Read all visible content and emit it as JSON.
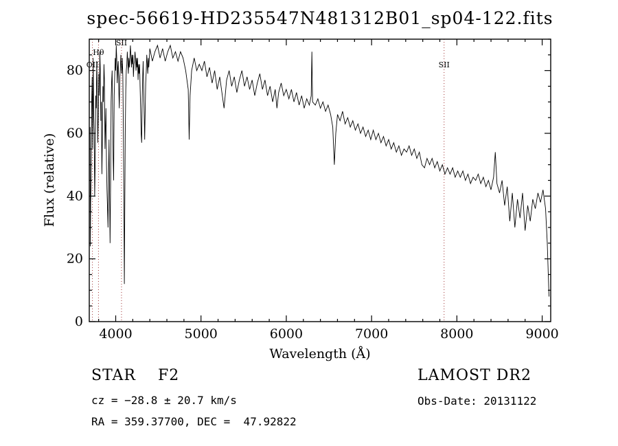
{
  "chart_data": {
    "type": "line",
    "title": "spec-56619-HD235547N481312B01_sp04-122.fits",
    "xlabel": "Wavelength (Å)",
    "ylabel": "Flux (relative)",
    "xlim": [
      3690,
      9100
    ],
    "ylim": [
      0,
      90
    ],
    "x_ticks": [
      4000,
      5000,
      6000,
      7000,
      8000,
      9000
    ],
    "y_ticks": [
      0,
      20,
      40,
      60,
      80
    ],
    "x_minor_step": 200,
    "y_minor_step": 5,
    "grid": false,
    "line_color": "#000000",
    "marker_line_color": "#a03232",
    "spectral_lines": [
      {
        "label": "Hθ",
        "wavelength": 3798,
        "label_flux": 85
      },
      {
        "label": "OII",
        "wavelength": 3727,
        "label_flux": 81
      },
      {
        "label": "SII",
        "wavelength": 4068,
        "label_flux": 88
      },
      {
        "label": "SII",
        "wavelength": 7850,
        "label_flux": 81
      }
    ],
    "points": [
      [
        3700,
        62
      ],
      [
        3703,
        24
      ],
      [
        3706,
        38
      ],
      [
        3712,
        45
      ],
      [
        3718,
        70
      ],
      [
        3724,
        78
      ],
      [
        3730,
        55
      ],
      [
        3736,
        84
      ],
      [
        3742,
        66
      ],
      [
        3748,
        60
      ],
      [
        3754,
        40
      ],
      [
        3760,
        52
      ],
      [
        3766,
        72
      ],
      [
        3772,
        68
      ],
      [
        3778,
        83
      ],
      [
        3784,
        74
      ],
      [
        3790,
        57
      ],
      [
        3796,
        65
      ],
      [
        3802,
        79
      ],
      [
        3808,
        72
      ],
      [
        3814,
        86
      ],
      [
        3820,
        80
      ],
      [
        3826,
        64
      ],
      [
        3832,
        70
      ],
      [
        3838,
        47
      ],
      [
        3844,
        58
      ],
      [
        3850,
        75
      ],
      [
        3856,
        70
      ],
      [
        3862,
        82
      ],
      [
        3868,
        77
      ],
      [
        3874,
        55
      ],
      [
        3880,
        62
      ],
      [
        3886,
        68
      ],
      [
        3892,
        50
      ],
      [
        3898,
        42
      ],
      [
        3904,
        36
      ],
      [
        3910,
        30
      ],
      [
        3916,
        48
      ],
      [
        3922,
        58
      ],
      [
        3928,
        40
      ],
      [
        3934,
        25
      ],
      [
        3940,
        45
      ],
      [
        3946,
        70
      ],
      [
        3952,
        76
      ],
      [
        3958,
        80
      ],
      [
        3964,
        68
      ],
      [
        3970,
        52
      ],
      [
        3976,
        45
      ],
      [
        3982,
        72
      ],
      [
        3988,
        78
      ],
      [
        3994,
        84
      ],
      [
        4000,
        80
      ],
      [
        4006,
        88
      ],
      [
        4012,
        84
      ],
      [
        4018,
        76
      ],
      [
        4024,
        81
      ],
      [
        4030,
        83
      ],
      [
        4036,
        74
      ],
      [
        4042,
        68
      ],
      [
        4048,
        78
      ],
      [
        4054,
        80
      ],
      [
        4060,
        85
      ],
      [
        4066,
        82
      ],
      [
        4072,
        79
      ],
      [
        4078,
        84
      ],
      [
        4084,
        78
      ],
      [
        4090,
        60
      ],
      [
        4096,
        40
      ],
      [
        4101,
        12
      ],
      [
        4106,
        35
      ],
      [
        4112,
        60
      ],
      [
        4118,
        74
      ],
      [
        4124,
        80
      ],
      [
        4130,
        82
      ],
      [
        4136,
        86
      ],
      [
        4142,
        83
      ],
      [
        4148,
        79
      ],
      [
        4154,
        84
      ],
      [
        4160,
        81
      ],
      [
        4166,
        84
      ],
      [
        4172,
        88
      ],
      [
        4178,
        85
      ],
      [
        4184,
        81
      ],
      [
        4190,
        85
      ],
      [
        4196,
        82
      ],
      [
        4202,
        85
      ],
      [
        4208,
        78
      ],
      [
        4214,
        82
      ],
      [
        4220,
        83
      ],
      [
        4226,
        86
      ],
      [
        4232,
        84
      ],
      [
        4238,
        80
      ],
      [
        4244,
        84
      ],
      [
        4250,
        81
      ],
      [
        4256,
        84
      ],
      [
        4262,
        77
      ],
      [
        4268,
        82
      ],
      [
        4274,
        79
      ],
      [
        4280,
        82
      ],
      [
        4286,
        75
      ],
      [
        4292,
        68
      ],
      [
        4298,
        60
      ],
      [
        4304,
        57
      ],
      [
        4310,
        70
      ],
      [
        4316,
        78
      ],
      [
        4322,
        83
      ],
      [
        4328,
        74
      ],
      [
        4334,
        66
      ],
      [
        4340,
        58
      ],
      [
        4346,
        68
      ],
      [
        4352,
        76
      ],
      [
        4358,
        80
      ],
      [
        4364,
        85
      ],
      [
        4370,
        82
      ],
      [
        4376,
        79
      ],
      [
        4382,
        84
      ],
      [
        4388,
        81
      ],
      [
        4394,
        84
      ],
      [
        4400,
        87
      ],
      [
        4430,
        83
      ],
      [
        4460,
        86
      ],
      [
        4490,
        88
      ],
      [
        4520,
        84
      ],
      [
        4550,
        87
      ],
      [
        4580,
        83
      ],
      [
        4610,
        86
      ],
      [
        4640,
        88
      ],
      [
        4670,
        84
      ],
      [
        4700,
        86
      ],
      [
        4730,
        83
      ],
      [
        4760,
        86
      ],
      [
        4790,
        84
      ],
      [
        4820,
        80
      ],
      [
        4850,
        74
      ],
      [
        4861,
        58
      ],
      [
        4872,
        72
      ],
      [
        4890,
        80
      ],
      [
        4920,
        84
      ],
      [
        4950,
        80
      ],
      [
        4980,
        82
      ],
      [
        5010,
        80
      ],
      [
        5040,
        83
      ],
      [
        5070,
        78
      ],
      [
        5100,
        81
      ],
      [
        5130,
        76
      ],
      [
        5160,
        80
      ],
      [
        5190,
        74
      ],
      [
        5220,
        78
      ],
      [
        5250,
        72
      ],
      [
        5270,
        68
      ],
      [
        5300,
        77
      ],
      [
        5330,
        80
      ],
      [
        5360,
        75
      ],
      [
        5390,
        78
      ],
      [
        5420,
        73
      ],
      [
        5450,
        77
      ],
      [
        5480,
        80
      ],
      [
        5510,
        75
      ],
      [
        5540,
        78
      ],
      [
        5570,
        74
      ],
      [
        5600,
        77
      ],
      [
        5630,
        72
      ],
      [
        5660,
        76
      ],
      [
        5690,
        79
      ],
      [
        5720,
        74
      ],
      [
        5750,
        77
      ],
      [
        5780,
        72
      ],
      [
        5810,
        75
      ],
      [
        5840,
        70
      ],
      [
        5870,
        74
      ],
      [
        5890,
        68
      ],
      [
        5910,
        73
      ],
      [
        5940,
        76
      ],
      [
        5970,
        72
      ],
      [
        6000,
        74
      ],
      [
        6030,
        71
      ],
      [
        6060,
        74
      ],
      [
        6090,
        70
      ],
      [
        6120,
        73
      ],
      [
        6150,
        69
      ],
      [
        6180,
        72
      ],
      [
        6210,
        68
      ],
      [
        6240,
        71
      ],
      [
        6270,
        69
      ],
      [
        6292,
        72
      ],
      [
        6300,
        86
      ],
      [
        6308,
        70
      ],
      [
        6340,
        69
      ],
      [
        6370,
        71
      ],
      [
        6400,
        68
      ],
      [
        6430,
        70
      ],
      [
        6460,
        67
      ],
      [
        6490,
        69
      ],
      [
        6520,
        66
      ],
      [
        6545,
        62
      ],
      [
        6563,
        50
      ],
      [
        6580,
        60
      ],
      [
        6600,
        66
      ],
      [
        6630,
        64
      ],
      [
        6660,
        67
      ],
      [
        6690,
        63
      ],
      [
        6720,
        65
      ],
      [
        6750,
        62
      ],
      [
        6780,
        64
      ],
      [
        6810,
        61
      ],
      [
        6840,
        63
      ],
      [
        6870,
        60
      ],
      [
        6900,
        62
      ],
      [
        6930,
        59
      ],
      [
        6960,
        61
      ],
      [
        6990,
        58
      ],
      [
        7020,
        61
      ],
      [
        7050,
        58
      ],
      [
        7080,
        60
      ],
      [
        7110,
        57
      ],
      [
        7140,
        59
      ],
      [
        7170,
        56
      ],
      [
        7200,
        58
      ],
      [
        7230,
        55
      ],
      [
        7260,
        57
      ],
      [
        7290,
        54
      ],
      [
        7320,
        56
      ],
      [
        7350,
        53
      ],
      [
        7380,
        55
      ],
      [
        7410,
        54
      ],
      [
        7440,
        56
      ],
      [
        7470,
        53
      ],
      [
        7500,
        55
      ],
      [
        7530,
        52
      ],
      [
        7560,
        54
      ],
      [
        7590,
        50
      ],
      [
        7620,
        49
      ],
      [
        7650,
        52
      ],
      [
        7680,
        50
      ],
      [
        7710,
        52
      ],
      [
        7740,
        49
      ],
      [
        7770,
        51
      ],
      [
        7800,
        48
      ],
      [
        7830,
        50
      ],
      [
        7860,
        47
      ],
      [
        7890,
        49
      ],
      [
        7920,
        47
      ],
      [
        7950,
        49
      ],
      [
        7980,
        46
      ],
      [
        8010,
        48
      ],
      [
        8040,
        46
      ],
      [
        8070,
        48
      ],
      [
        8100,
        45
      ],
      [
        8130,
        47
      ],
      [
        8160,
        44
      ],
      [
        8190,
        46
      ],
      [
        8220,
        45
      ],
      [
        8250,
        47
      ],
      [
        8280,
        44
      ],
      [
        8310,
        46
      ],
      [
        8340,
        43
      ],
      [
        8370,
        45
      ],
      [
        8400,
        42
      ],
      [
        8430,
        46
      ],
      [
        8450,
        54
      ],
      [
        8470,
        44
      ],
      [
        8500,
        41
      ],
      [
        8530,
        45
      ],
      [
        8560,
        37
      ],
      [
        8590,
        43
      ],
      [
        8620,
        32
      ],
      [
        8650,
        41
      ],
      [
        8680,
        30
      ],
      [
        8710,
        39
      ],
      [
        8740,
        33
      ],
      [
        8770,
        41
      ],
      [
        8800,
        29
      ],
      [
        8830,
        37
      ],
      [
        8860,
        32
      ],
      [
        8890,
        39
      ],
      [
        8920,
        36
      ],
      [
        8950,
        41
      ],
      [
        8980,
        38
      ],
      [
        9010,
        42
      ],
      [
        9040,
        36
      ],
      [
        9060,
        25
      ],
      [
        9080,
        8
      ]
    ]
  },
  "annotations": {
    "class_line": "STAR    F2",
    "survey": "LAMOST DR2",
    "cz": "cz = −28.8 ± 20.7 km/s",
    "obs_date": "Obs-Date: 20131122",
    "ra_dec": "RA = 359.37700, DEC =  47.92822"
  }
}
